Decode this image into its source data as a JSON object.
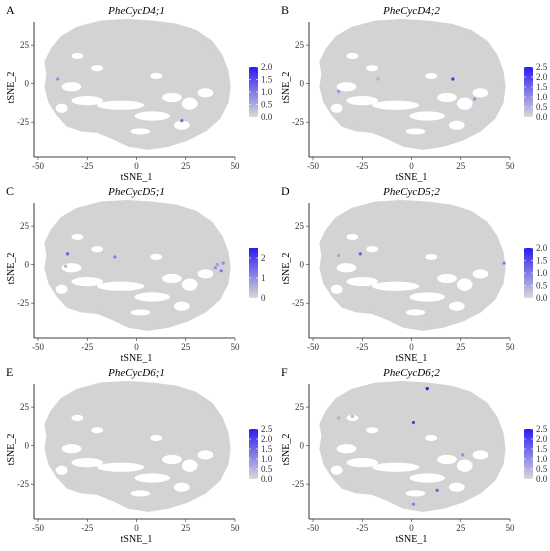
{
  "chart_data": [
    {
      "letter": "A",
      "title": "PheCycD4;1",
      "type": "scatter",
      "xlabel": "tSNE_1",
      "ylabel": "tSNE_2",
      "xlim": [
        -50,
        50
      ],
      "ylim": [
        -45,
        40
      ],
      "xticks": [
        "-50",
        "-25",
        "0",
        "25",
        "50"
      ],
      "yticks": [
        "25",
        "0",
        "-25"
      ],
      "legend": {
        "ticks": [
          "2.0",
          "1.5",
          "1.0",
          "0.5",
          "0.0"
        ],
        "max": 2.0,
        "low_color": "#d9d9d9",
        "high_color": "#2a1cf2"
      },
      "points": [
        [
          -40,
          3,
          0.8
        ],
        [
          23,
          -24,
          1.2
        ]
      ]
    },
    {
      "letter": "B",
      "title": "PheCycD4;2",
      "type": "scatter",
      "xlabel": "tSNE_1",
      "ylabel": "tSNE_2",
      "xlim": [
        -50,
        50
      ],
      "ylim": [
        -45,
        40
      ],
      "xticks": [
        "-50",
        "-25",
        "0",
        "25",
        "50"
      ],
      "yticks": [
        "25",
        "0",
        "-25"
      ],
      "legend": {
        "ticks": [
          "2.5",
          "2.0",
          "1.5",
          "1.0",
          "0.5",
          "0.0"
        ],
        "max": 2.5,
        "low_color": "#d9d9d9",
        "high_color": "#2a1cf2"
      },
      "points": [
        [
          -37,
          -5,
          0.9
        ],
        [
          -17,
          3,
          0.6
        ],
        [
          21,
          3,
          2.2
        ],
        [
          32,
          -10,
          1.0
        ]
      ]
    },
    {
      "letter": "C",
      "title": "PheCycD5;1",
      "type": "scatter",
      "xlabel": "tSNE_1",
      "ylabel": "tSNE_2",
      "xlim": [
        -50,
        50
      ],
      "ylim": [
        -45,
        40
      ],
      "xticks": [
        "-50",
        "-25",
        "0",
        "25",
        "50"
      ],
      "yticks": [
        "25",
        "0",
        "-25"
      ],
      "legend": {
        "ticks": [
          "2",
          "1",
          "0"
        ],
        "max": 2.5,
        "low_color": "#d9d9d9",
        "high_color": "#2a1cf2"
      },
      "points": [
        [
          -35,
          7,
          1.6
        ],
        [
          -11,
          5,
          1.2
        ],
        [
          -36,
          -1,
          0.5
        ],
        [
          40,
          -2,
          1.0
        ],
        [
          43,
          -4,
          1.3
        ],
        [
          41,
          0,
          0.8
        ],
        [
          44,
          1,
          1.0
        ]
      ]
    },
    {
      "letter": "D",
      "title": "PheCycD5;2",
      "type": "scatter",
      "xlabel": "tSNE_1",
      "ylabel": "tSNE_2",
      "xlim": [
        -50,
        50
      ],
      "ylim": [
        -45,
        40
      ],
      "xticks": [
        "-50",
        "-25",
        "0",
        "25",
        "50"
      ],
      "yticks": [
        "25",
        "0",
        "-25"
      ],
      "legend": {
        "ticks": [
          "2.0",
          "1.5",
          "1.0",
          "0.5",
          "0.0"
        ],
        "max": 2.0,
        "low_color": "#d9d9d9",
        "high_color": "#2a1cf2"
      },
      "points": [
        [
          -37,
          6,
          0.6
        ],
        [
          -26,
          7,
          1.3
        ],
        [
          47,
          1,
          1.0
        ]
      ]
    },
    {
      "letter": "E",
      "title": "PheCycD6;1",
      "type": "scatter",
      "xlabel": "tSNE_1",
      "ylabel": "tSNE_2",
      "xlim": [
        -50,
        50
      ],
      "ylim": [
        -45,
        40
      ],
      "xticks": [
        "-50",
        "-25",
        "0",
        "25",
        "50"
      ],
      "yticks": [
        "25",
        "0",
        "-25"
      ],
      "legend": {
        "ticks": [
          "2.5",
          "2.0",
          "1.5",
          "1.0",
          "0.5",
          "0.0"
        ],
        "max": 2.5,
        "low_color": "#d9d9d9",
        "high_color": "#2a1cf2"
      },
      "points": []
    },
    {
      "letter": "F",
      "title": "PheCycD6;2",
      "type": "scatter",
      "xlabel": "tSNE_1",
      "ylabel": "tSNE_2",
      "xlim": [
        -50,
        50
      ],
      "ylim": [
        -45,
        40
      ],
      "xticks": [
        "-50",
        "-25",
        "0",
        "25",
        "50"
      ],
      "yticks": [
        "25",
        "0",
        "-25"
      ],
      "legend": {
        "ticks": [
          "2.5",
          "2.0",
          "1.5",
          "1.0",
          "0.5",
          "0.0"
        ],
        "max": 2.5,
        "low_color": "#d9d9d9",
        "high_color": "#2a1cf2"
      },
      "points": [
        [
          -37,
          18,
          0.6
        ],
        [
          -30,
          19,
          0.5
        ],
        [
          8,
          37,
          2.6
        ],
        [
          1,
          15,
          2.0
        ],
        [
          26,
          -6,
          1.0
        ],
        [
          13,
          -29,
          1.6
        ],
        [
          1,
          -38,
          1.2
        ]
      ]
    }
  ]
}
